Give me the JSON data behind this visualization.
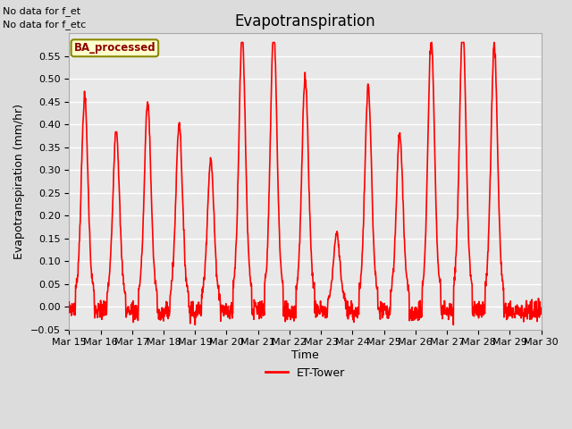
{
  "title": "Evapotranspiration",
  "ylabel": "Evapotranspiration (mm/hr)",
  "xlabel": "Time",
  "ylim": [
    -0.05,
    0.6
  ],
  "yticks": [
    -0.05,
    0.0,
    0.05,
    0.1,
    0.15,
    0.2,
    0.25,
    0.3,
    0.35,
    0.4,
    0.45,
    0.5,
    0.55
  ],
  "line_color": "red",
  "line_width": 1.2,
  "fig_bg_color": "#dcdcdc",
  "plot_bg_color": "#e8e8e8",
  "legend_label": "ET-Tower",
  "legend_box_color": "#ffffcc",
  "legend_box_edge": "#888800",
  "legend_text": "BA_processed",
  "top_left_text1": "No data for f_et",
  "top_left_text2": "No data for f_etc",
  "x_tick_labels": [
    "Mar 15",
    "Mar 16",
    "Mar 17",
    "Mar 18",
    "Mar 19",
    "Mar 20",
    "Mar 21",
    "Mar 22",
    "Mar 23",
    "Mar 24",
    "Mar 25",
    "Mar 26",
    "Mar 27",
    "Mar 28",
    "Mar 29",
    "Mar 30"
  ],
  "num_days": 15,
  "title_fontsize": 12,
  "axis_fontsize": 9,
  "tick_fontsize": 8,
  "peaks": [
    0.4,
    0.34,
    0.39,
    0.35,
    0.28,
    0.52,
    0.53,
    0.44,
    0.14,
    0.42,
    0.33,
    0.51,
    0.54,
    0.5,
    0.0
  ],
  "grid_color": "#ffffff",
  "grid_alpha": 1.0
}
